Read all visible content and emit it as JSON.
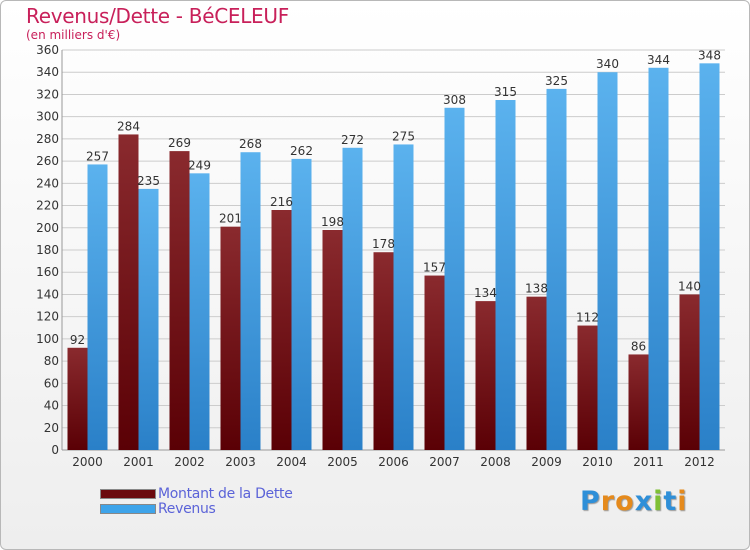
{
  "title": "Revenus/Dette - BéCELEUF",
  "subtitle": "(en milliers d'€)",
  "legend": [
    {
      "label": "Montant de la Dette",
      "color": "#6b0a0e"
    },
    {
      "label": "Revenus",
      "color": "#3ea4ea"
    }
  ],
  "logo": {
    "text": "Proxiti",
    "letters": [
      "P",
      "r",
      "o",
      "x",
      "i",
      "t",
      "i"
    ],
    "colors": [
      "#2e8fd8",
      "#e58a1c",
      "#e58a1c",
      "#2e8fd8",
      "#7fc035",
      "#2e8fd8",
      "#e58a1c"
    ]
  },
  "colors": {
    "debt_top": "#8a2a2e",
    "debt_bottom": "#5a0005",
    "revenue_top": "#5bb2ee",
    "revenue_bottom": "#2a80c8",
    "grid": "#cccccc",
    "axis_text": "#333333"
  },
  "chart_data": {
    "type": "bar",
    "categories": [
      "2000",
      "2001",
      "2002",
      "2003",
      "2004",
      "2005",
      "2006",
      "2007",
      "2008",
      "2009",
      "2010",
      "2011",
      "2012"
    ],
    "series": [
      {
        "name": "Montant de la Dette",
        "values": [
          92,
          284,
          269,
          201,
          216,
          198,
          178,
          157,
          134,
          138,
          112,
          86,
          140
        ]
      },
      {
        "name": "Revenus",
        "values": [
          257,
          235,
          249,
          268,
          262,
          272,
          275,
          308,
          315,
          325,
          340,
          344,
          348
        ]
      }
    ],
    "ylim": [
      0,
      360
    ],
    "ytick_step": 20,
    "grid": true,
    "legend_position": "bottom-left"
  }
}
